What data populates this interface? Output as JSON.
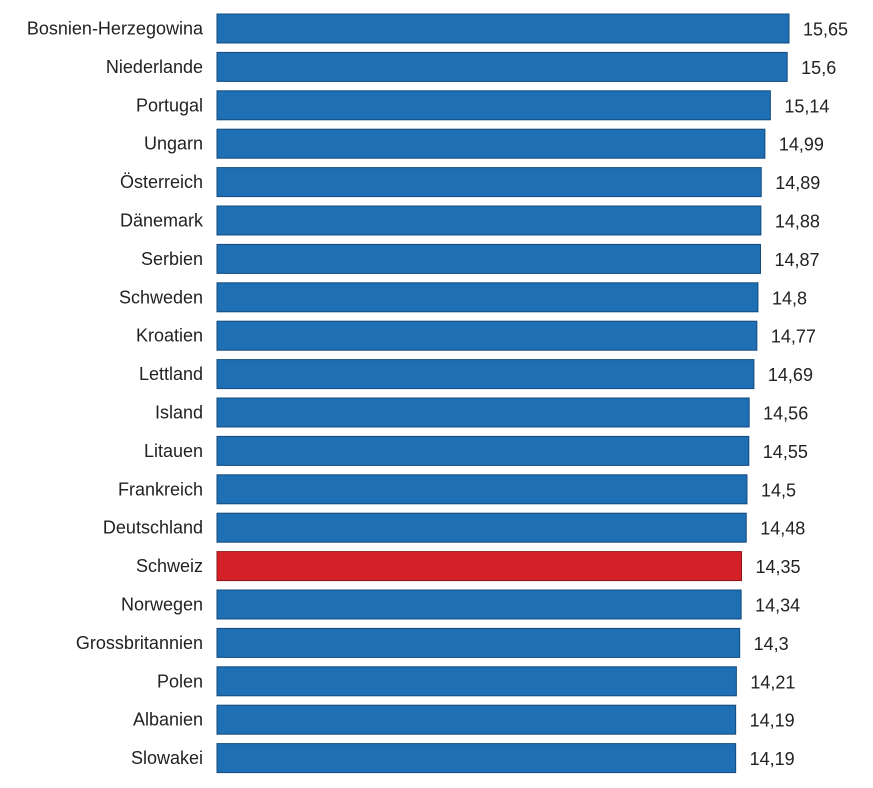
{
  "chart_data": {
    "type": "bar",
    "orientation": "horizontal",
    "title": "",
    "xlabel": "",
    "ylabel": "",
    "xlim": [
      0,
      15.65
    ],
    "grid": false,
    "categories": [
      "Bosnien-Herzegowina",
      "Niederlande",
      "Portugal",
      "Ungarn",
      "Österreich",
      "Dänemark",
      "Serbien",
      "Schweden",
      "Kroatien",
      "Lettland",
      "Island",
      "Litauen",
      "Frankreich",
      "Deutschland",
      "Schweiz",
      "Norwegen",
      "Grossbritannien",
      "Polen",
      "Albanien",
      "Slowakei"
    ],
    "values": [
      15.65,
      15.6,
      15.14,
      14.99,
      14.89,
      14.88,
      14.87,
      14.8,
      14.77,
      14.69,
      14.56,
      14.55,
      14.5,
      14.48,
      14.35,
      14.34,
      14.3,
      14.21,
      14.19,
      14.19
    ],
    "value_labels": [
      "15,65",
      "15,6",
      "15,14",
      "14,99",
      "14,89",
      "14,88",
      "14,87",
      "14,8",
      "14,77",
      "14,69",
      "14,56",
      "14,55",
      "14,5",
      "14,48",
      "14,35",
      "14,34",
      "14,3",
      "14,21",
      "14,19",
      "14,19"
    ],
    "highlight": "Schweiz",
    "colors": {
      "default": "#1f6fb5",
      "default_border": "#134a7c",
      "highlight": "#d42127",
      "highlight_border": "#8a1418"
    }
  }
}
